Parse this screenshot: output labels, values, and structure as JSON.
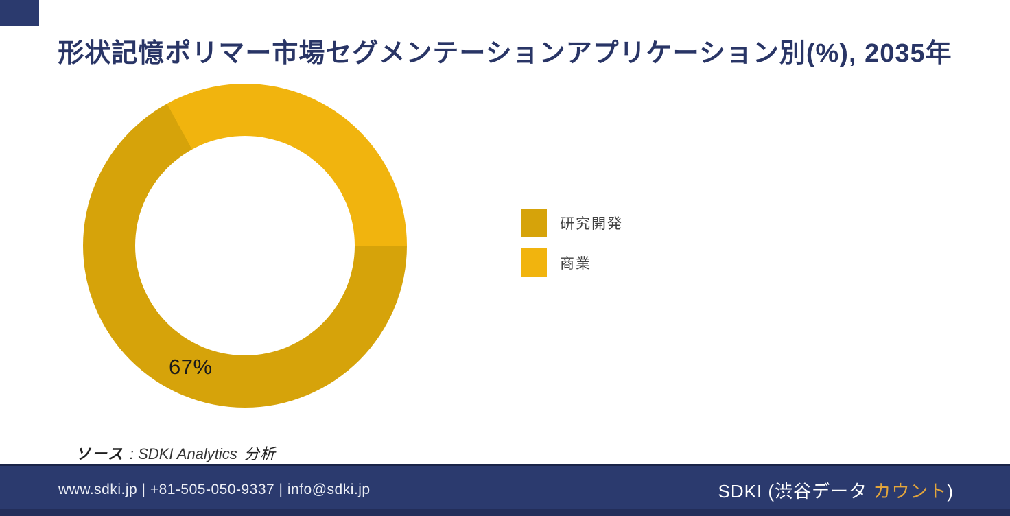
{
  "page": {
    "title": "形状記憶ポリマー市場セグメンテーションアプリケーション別(%), 2035年"
  },
  "chart_data": {
    "type": "pie",
    "subtype": "donut",
    "title": "形状記憶ポリマー市場セグメンテーションアプリケーション別(%), 2035年",
    "unit": "%",
    "year": "2035年",
    "categories": [
      "研究開発",
      "商業"
    ],
    "values": [
      67,
      33
    ],
    "colors": [
      "#D6A30A",
      "#F1B40E"
    ],
    "data_labels": [
      "67%",
      ""
    ],
    "legend_position": "right",
    "first_slice_start": "east-clockwise"
  },
  "legend": {
    "items": [
      {
        "label": "研究開発",
        "color": "#D6A30A"
      },
      {
        "label": "商業",
        "color": "#F1B40E"
      }
    ]
  },
  "source": {
    "label": "ソース",
    "rest": ": SDKI Analytics",
    "suffix": "分析"
  },
  "footer": {
    "contact": "www.sdki.jp | +81-505-050-9337 | info@sdki.jp",
    "brand_prefix": "SDKI (渋谷データ ",
    "brand_highlight": "カウント",
    "brand_suffix": ")",
    "background": "#2B3A6E",
    "highlight_color": "#E2A53C"
  },
  "theme": {
    "title_color": "#293566",
    "legend_text_color": "#404040",
    "slice_label_color": "#1A1A1A"
  }
}
